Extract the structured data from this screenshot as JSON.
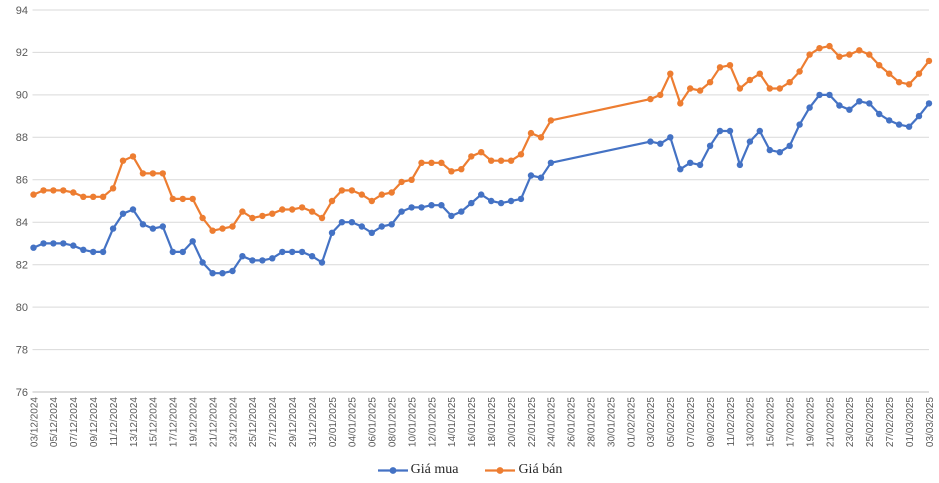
{
  "chart_data": {
    "type": "line",
    "title": "",
    "xlabel": "",
    "ylabel": "",
    "ylim": [
      76,
      94
    ],
    "yticks": [
      76,
      78,
      80,
      82,
      84,
      86,
      88,
      90,
      92,
      94
    ],
    "grid": "horizontal",
    "legend_position": "bottom",
    "x_label_interval": 2,
    "x": [
      "03/12/2024",
      "04/12/2024",
      "05/12/2024",
      "06/12/2024",
      "07/12/2024",
      "08/12/2024",
      "09/12/2024",
      "10/12/2024",
      "11/12/2024",
      "12/12/2024",
      "13/12/2024",
      "14/12/2024",
      "15/12/2024",
      "16/12/2024",
      "17/12/2024",
      "18/12/2024",
      "19/12/2024",
      "20/12/2024",
      "21/12/2024",
      "22/12/2024",
      "23/12/2024",
      "24/12/2024",
      "25/12/2024",
      "26/12/2024",
      "27/12/2024",
      "28/12/2024",
      "29/12/2024",
      "30/12/2024",
      "31/12/2024",
      "01/01/2025",
      "02/01/2025",
      "03/01/2025",
      "04/01/2025",
      "05/01/2025",
      "06/01/2025",
      "07/01/2025",
      "08/01/2025",
      "09/01/2025",
      "10/01/2025",
      "11/01/2025",
      "12/01/2025",
      "13/01/2025",
      "14/01/2025",
      "15/01/2025",
      "16/01/2025",
      "17/01/2025",
      "18/01/2025",
      "19/01/2025",
      "20/01/2025",
      "21/01/2025",
      "22/01/2025",
      "23/01/2025",
      "24/01/2025",
      "25/01/2025",
      "26/01/2025",
      "27/01/2025",
      "28/01/2025",
      "29/01/2025",
      "30/01/2025",
      "31/01/2025",
      "01/02/2025",
      "02/02/2025",
      "03/02/2025",
      "04/02/2025",
      "05/02/2025",
      "06/02/2025",
      "07/02/2025",
      "08/02/2025",
      "09/02/2025",
      "10/02/2025",
      "11/02/2025",
      "12/02/2025",
      "13/02/2025",
      "14/02/2025",
      "15/02/2025",
      "16/02/2025",
      "17/02/2025",
      "18/02/2025",
      "19/02/2025",
      "20/02/2025",
      "21/02/2025",
      "22/02/2025",
      "23/02/2025",
      "24/02/2025",
      "25/02/2025",
      "26/02/2025",
      "27/02/2025",
      "28/02/2025",
      "01/03/2025",
      "02/03/2025",
      "03/03/2025"
    ],
    "series": [
      {
        "name": "Giá mua",
        "color": "#4472C4",
        "values": [
          82.8,
          83.0,
          83.0,
          83.0,
          82.9,
          82.7,
          82.6,
          82.6,
          83.7,
          84.4,
          84.6,
          83.9,
          83.7,
          83.8,
          82.6,
          82.6,
          83.1,
          82.1,
          81.6,
          81.6,
          81.7,
          82.4,
          82.2,
          82.2,
          82.3,
          82.6,
          82.6,
          82.6,
          82.4,
          82.1,
          83.5,
          84.0,
          84.0,
          83.8,
          83.5,
          83.8,
          83.9,
          84.5,
          84.7,
          84.7,
          84.8,
          84.8,
          84.3,
          84.5,
          84.9,
          85.3,
          85.0,
          84.9,
          85.0,
          85.1,
          86.2,
          86.1,
          86.8,
          null,
          null,
          null,
          null,
          null,
          null,
          null,
          null,
          null,
          87.8,
          87.7,
          88.0,
          86.5,
          86.8,
          86.7,
          87.6,
          88.3,
          88.3,
          86.7,
          87.8,
          88.3,
          87.4,
          87.3,
          87.6,
          88.6,
          89.4,
          90.0,
          90.0,
          89.5,
          89.3,
          89.7,
          89.6,
          89.1,
          88.8,
          88.6,
          88.5,
          89.0,
          89.6
        ]
      },
      {
        "name": "Giá bán",
        "color": "#ED7D31",
        "values": [
          85.3,
          85.5,
          85.5,
          85.5,
          85.4,
          85.2,
          85.2,
          85.2,
          85.6,
          86.9,
          87.1,
          86.3,
          86.3,
          86.3,
          85.1,
          85.1,
          85.1,
          84.2,
          83.6,
          83.7,
          83.8,
          84.5,
          84.2,
          84.3,
          84.4,
          84.6,
          84.6,
          84.7,
          84.5,
          84.2,
          85.0,
          85.5,
          85.5,
          85.3,
          85.0,
          85.3,
          85.4,
          85.9,
          86.0,
          86.8,
          86.8,
          86.8,
          86.4,
          86.5,
          87.1,
          87.3,
          86.9,
          86.9,
          86.9,
          87.2,
          88.2,
          88.0,
          88.8,
          null,
          null,
          null,
          null,
          null,
          null,
          null,
          null,
          null,
          89.8,
          90.0,
          91.0,
          89.6,
          90.3,
          90.2,
          90.6,
          91.3,
          91.4,
          90.3,
          90.7,
          91.0,
          90.3,
          90.3,
          90.6,
          91.1,
          91.9,
          92.2,
          92.3,
          91.8,
          91.9,
          92.1,
          91.9,
          91.4,
          91.0,
          90.6,
          90.5,
          91.0,
          91.6
        ]
      }
    ]
  },
  "colors": {
    "background": "#FFFFFF",
    "gridline": "#D9D9D9",
    "axis_line": "#BFBFBF",
    "axis_text": "#595959",
    "legend_text": "#262626",
    "series_buy": "#4472C4",
    "series_sell": "#ED7D31"
  }
}
